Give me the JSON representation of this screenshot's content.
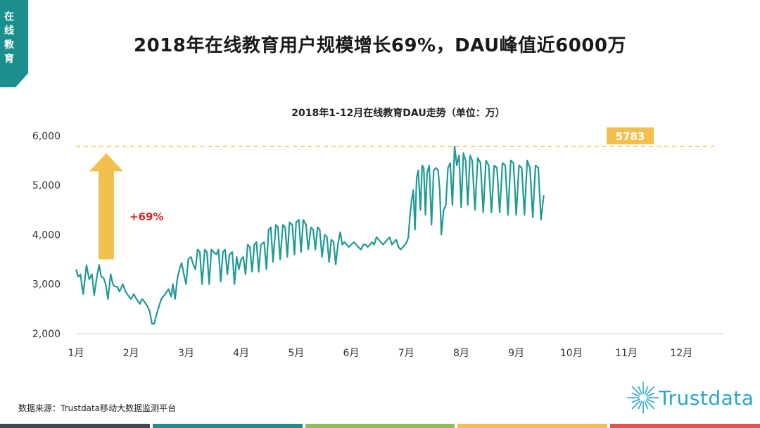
{
  "side_tab": {
    "label": "在线教育",
    "color": "#1a8f8b"
  },
  "title": "2018年在线教育用户规模增长69%，DAU峰值近6000万",
  "source": "数据来源：Trustdata移动大数据监测平台",
  "logo": {
    "text": "Trustdata",
    "color": "#2aa6c8"
  },
  "footer_colors": [
    "#3d4a56",
    "#1a8f8b",
    "#8fbf55",
    "#f4c04d",
    "#e5534b"
  ],
  "chart_data": {
    "type": "line",
    "title": "2018年1-12月在线教育DAU走势（单位：万）",
    "xlabel": "",
    "ylabel": "",
    "ylim": [
      2000,
      6000
    ],
    "yticks": [
      "6,000",
      "5,000",
      "4,000",
      "3,000",
      "2,000"
    ],
    "ytick_values": [
      6000,
      5000,
      4000,
      3000,
      2000
    ],
    "xticks": [
      "1月",
      "2月",
      "3月",
      "4月",
      "5月",
      "6月",
      "7月",
      "8月",
      "9月",
      "10月",
      "11月",
      "12月"
    ],
    "series_color": "#1f9a96",
    "peak": {
      "value": 5783,
      "label": "5783",
      "color": "#f4c04d"
    },
    "growth": {
      "label": "+69%",
      "from": 3500,
      "to": 5650,
      "color": "#f4c04d",
      "text_color": "#e02020"
    },
    "points": [
      [
        1.0,
        3300
      ],
      [
        1.04,
        3150
      ],
      [
        1.08,
        3200
      ],
      [
        1.13,
        2800
      ],
      [
        1.19,
        3380
      ],
      [
        1.24,
        3100
      ],
      [
        1.29,
        3200
      ],
      [
        1.33,
        2780
      ],
      [
        1.38,
        3150
      ],
      [
        1.42,
        3390
      ],
      [
        1.46,
        3150
      ],
      [
        1.5,
        3130
      ],
      [
        1.54,
        3000
      ],
      [
        1.58,
        2700
      ],
      [
        1.63,
        3200
      ],
      [
        1.67,
        3000
      ],
      [
        1.71,
        2950
      ],
      [
        1.75,
        2950
      ],
      [
        1.79,
        2850
      ],
      [
        1.85,
        3000
      ],
      [
        1.9,
        2850
      ],
      [
        1.96,
        2750
      ],
      [
        2.0,
        2700
      ],
      [
        2.05,
        2800
      ],
      [
        2.1,
        2700
      ],
      [
        2.16,
        2600
      ],
      [
        2.2,
        2700
      ],
      [
        2.24,
        2650
      ],
      [
        2.3,
        2550
      ],
      [
        2.34,
        2450
      ],
      [
        2.38,
        2200
      ],
      [
        2.42,
        2200
      ],
      [
        2.48,
        2450
      ],
      [
        2.55,
        2700
      ],
      [
        2.62,
        2800
      ],
      [
        2.68,
        2900
      ],
      [
        2.73,
        2750
      ],
      [
        2.76,
        3000
      ],
      [
        2.8,
        2700
      ],
      [
        2.84,
        3100
      ],
      [
        2.88,
        3300
      ],
      [
        2.92,
        3430
      ],
      [
        2.96,
        3200
      ],
      [
        3.0,
        3000
      ],
      [
        3.04,
        3500
      ],
      [
        3.09,
        3550
      ],
      [
        3.13,
        3400
      ],
      [
        3.17,
        3300
      ],
      [
        3.21,
        3700
      ],
      [
        3.25,
        3650
      ],
      [
        3.29,
        3000
      ],
      [
        3.34,
        3700
      ],
      [
        3.38,
        3650
      ],
      [
        3.42,
        3000
      ],
      [
        3.46,
        3700
      ],
      [
        3.5,
        3650
      ],
      [
        3.55,
        3600
      ],
      [
        3.59,
        3700
      ],
      [
        3.63,
        3050
      ],
      [
        3.67,
        3650
      ],
      [
        3.71,
        3700
      ],
      [
        3.75,
        3200
      ],
      [
        3.79,
        3600
      ],
      [
        3.84,
        3650
      ],
      [
        3.88,
        3000
      ],
      [
        3.92,
        3550
      ],
      [
        3.96,
        3300
      ],
      [
        4.0,
        3500
      ],
      [
        4.04,
        3550
      ],
      [
        4.08,
        3200
      ],
      [
        4.12,
        3800
      ],
      [
        4.16,
        3750
      ],
      [
        4.2,
        3250
      ],
      [
        4.24,
        3800
      ],
      [
        4.28,
        3850
      ],
      [
        4.32,
        3250
      ],
      [
        4.36,
        3800
      ],
      [
        4.42,
        3850
      ],
      [
        4.46,
        3300
      ],
      [
        4.5,
        4100
      ],
      [
        4.54,
        4150
      ],
      [
        4.58,
        3450
      ],
      [
        4.63,
        4200
      ],
      [
        4.67,
        4150
      ],
      [
        4.71,
        3500
      ],
      [
        4.76,
        4200
      ],
      [
        4.8,
        4150
      ],
      [
        4.84,
        3550
      ],
      [
        4.88,
        4250
      ],
      [
        4.93,
        4200
      ],
      [
        4.97,
        3600
      ],
      [
        5.0,
        4250
      ],
      [
        5.05,
        4300
      ],
      [
        5.09,
        3650
      ],
      [
        5.13,
        4300
      ],
      [
        5.18,
        4200
      ],
      [
        5.22,
        3700
      ],
      [
        5.27,
        4150
      ],
      [
        5.31,
        4100
      ],
      [
        5.35,
        3700
      ],
      [
        5.39,
        4150
      ],
      [
        5.43,
        4100
      ],
      [
        5.47,
        3550
      ],
      [
        5.52,
        4000
      ],
      [
        5.56,
        3950
      ],
      [
        5.6,
        3450
      ],
      [
        5.64,
        3900
      ],
      [
        5.68,
        3850
      ],
      [
        5.72,
        3400
      ],
      [
        5.76,
        3800
      ],
      [
        5.8,
        4050
      ],
      [
        5.84,
        3800
      ],
      [
        5.88,
        3850
      ],
      [
        5.92,
        3800
      ],
      [
        5.96,
        3750
      ],
      [
        6.0,
        3800
      ],
      [
        6.05,
        3850
      ],
      [
        6.09,
        3800
      ],
      [
        6.13,
        3750
      ],
      [
        6.18,
        3700
      ],
      [
        6.22,
        3800
      ],
      [
        6.26,
        3800
      ],
      [
        6.3,
        3750
      ],
      [
        6.34,
        3800
      ],
      [
        6.38,
        3850
      ],
      [
        6.42,
        3800
      ],
      [
        6.46,
        3950
      ],
      [
        6.5,
        3900
      ],
      [
        6.54,
        3850
      ],
      [
        6.58,
        3800
      ],
      [
        6.62,
        3850
      ],
      [
        6.66,
        3900
      ],
      [
        6.7,
        3950
      ],
      [
        6.74,
        3800
      ],
      [
        6.78,
        3850
      ],
      [
        6.82,
        3900
      ],
      [
        6.86,
        3750
      ],
      [
        6.9,
        3700
      ],
      [
        6.94,
        3750
      ],
      [
        6.98,
        3800
      ],
      [
        7.01,
        3850
      ],
      [
        7.04,
        3950
      ],
      [
        7.07,
        4400
      ],
      [
        7.1,
        4700
      ],
      [
        7.13,
        4900
      ],
      [
        7.16,
        4100
      ],
      [
        7.19,
        5150
      ],
      [
        7.22,
        5300
      ],
      [
        7.26,
        4500
      ],
      [
        7.29,
        5400
      ],
      [
        7.32,
        5350
      ],
      [
        7.35,
        4400
      ],
      [
        7.38,
        5250
      ],
      [
        7.42,
        5400
      ],
      [
        7.46,
        4200
      ],
      [
        7.5,
        5300
      ],
      [
        7.54,
        5350
      ],
      [
        7.58,
        5300
      ],
      [
        7.61,
        4900
      ],
      [
        7.64,
        4000
      ],
      [
        7.68,
        4500
      ],
      [
        7.72,
        4600
      ],
      [
        7.76,
        5350
      ],
      [
        7.8,
        5450
      ],
      [
        7.84,
        4600
      ],
      [
        7.88,
        5783
      ],
      [
        7.92,
        5400
      ],
      [
        7.96,
        5600
      ],
      [
        8.0,
        4550
      ],
      [
        8.04,
        5650
      ],
      [
        8.08,
        5500
      ],
      [
        8.12,
        4600
      ],
      [
        8.16,
        5600
      ],
      [
        8.2,
        5500
      ],
      [
        8.25,
        4500
      ],
      [
        8.3,
        5550
      ],
      [
        8.35,
        5450
      ],
      [
        8.4,
        4450
      ],
      [
        8.45,
        5500
      ],
      [
        8.5,
        5400
      ],
      [
        8.55,
        4450
      ],
      [
        8.6,
        5400
      ],
      [
        8.65,
        5350
      ],
      [
        8.7,
        4450
      ],
      [
        8.75,
        5450
      ],
      [
        8.8,
        5400
      ],
      [
        8.85,
        4400
      ],
      [
        8.9,
        5500
      ],
      [
        8.95,
        5450
      ],
      [
        9.0,
        4400
      ],
      [
        9.05,
        5400
      ],
      [
        9.1,
        5350
      ],
      [
        9.15,
        4400
      ],
      [
        9.2,
        5500
      ],
      [
        9.25,
        5350
      ],
      [
        9.3,
        4350
      ],
      [
        9.35,
        5400
      ],
      [
        9.4,
        5350
      ],
      [
        9.45,
        4300
      ],
      [
        9.5,
        4800
      ]
    ]
  }
}
